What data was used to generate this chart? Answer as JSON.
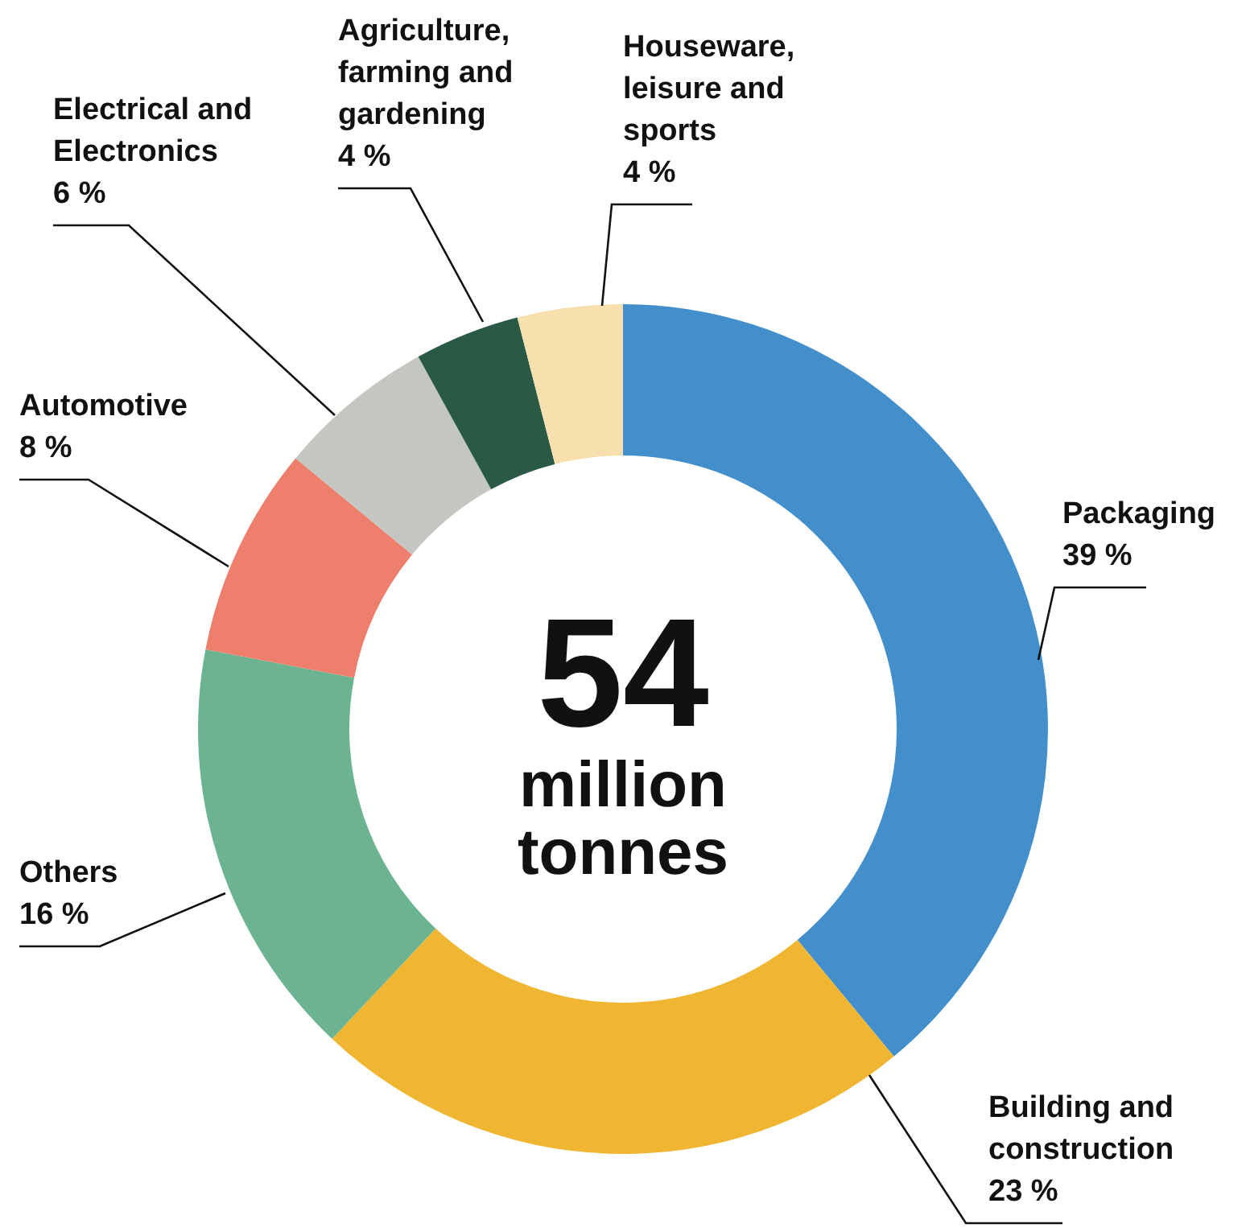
{
  "chart_data": {
    "type": "donut",
    "categories": [
      "Packaging",
      "Building and construction",
      "Others",
      "Automotive",
      "Electrical and Electronics",
      "Agriculture, farming and gardening",
      "Houseware, leisure and sports"
    ],
    "values": [
      39,
      23,
      16,
      8,
      6,
      4,
      4
    ],
    "value_labels": [
      "39 %",
      "23 %",
      "16 %",
      "8 %",
      "6 %",
      "4 %",
      "4 %"
    ],
    "colors": [
      "#438fcc",
      "#f0b632",
      "#6bb391",
      "#ee7f6c",
      "#c4c6c1",
      "#2a5a45",
      "#f7e0ae"
    ],
    "annotations": [
      "54",
      "million tonnes"
    ]
  }
}
